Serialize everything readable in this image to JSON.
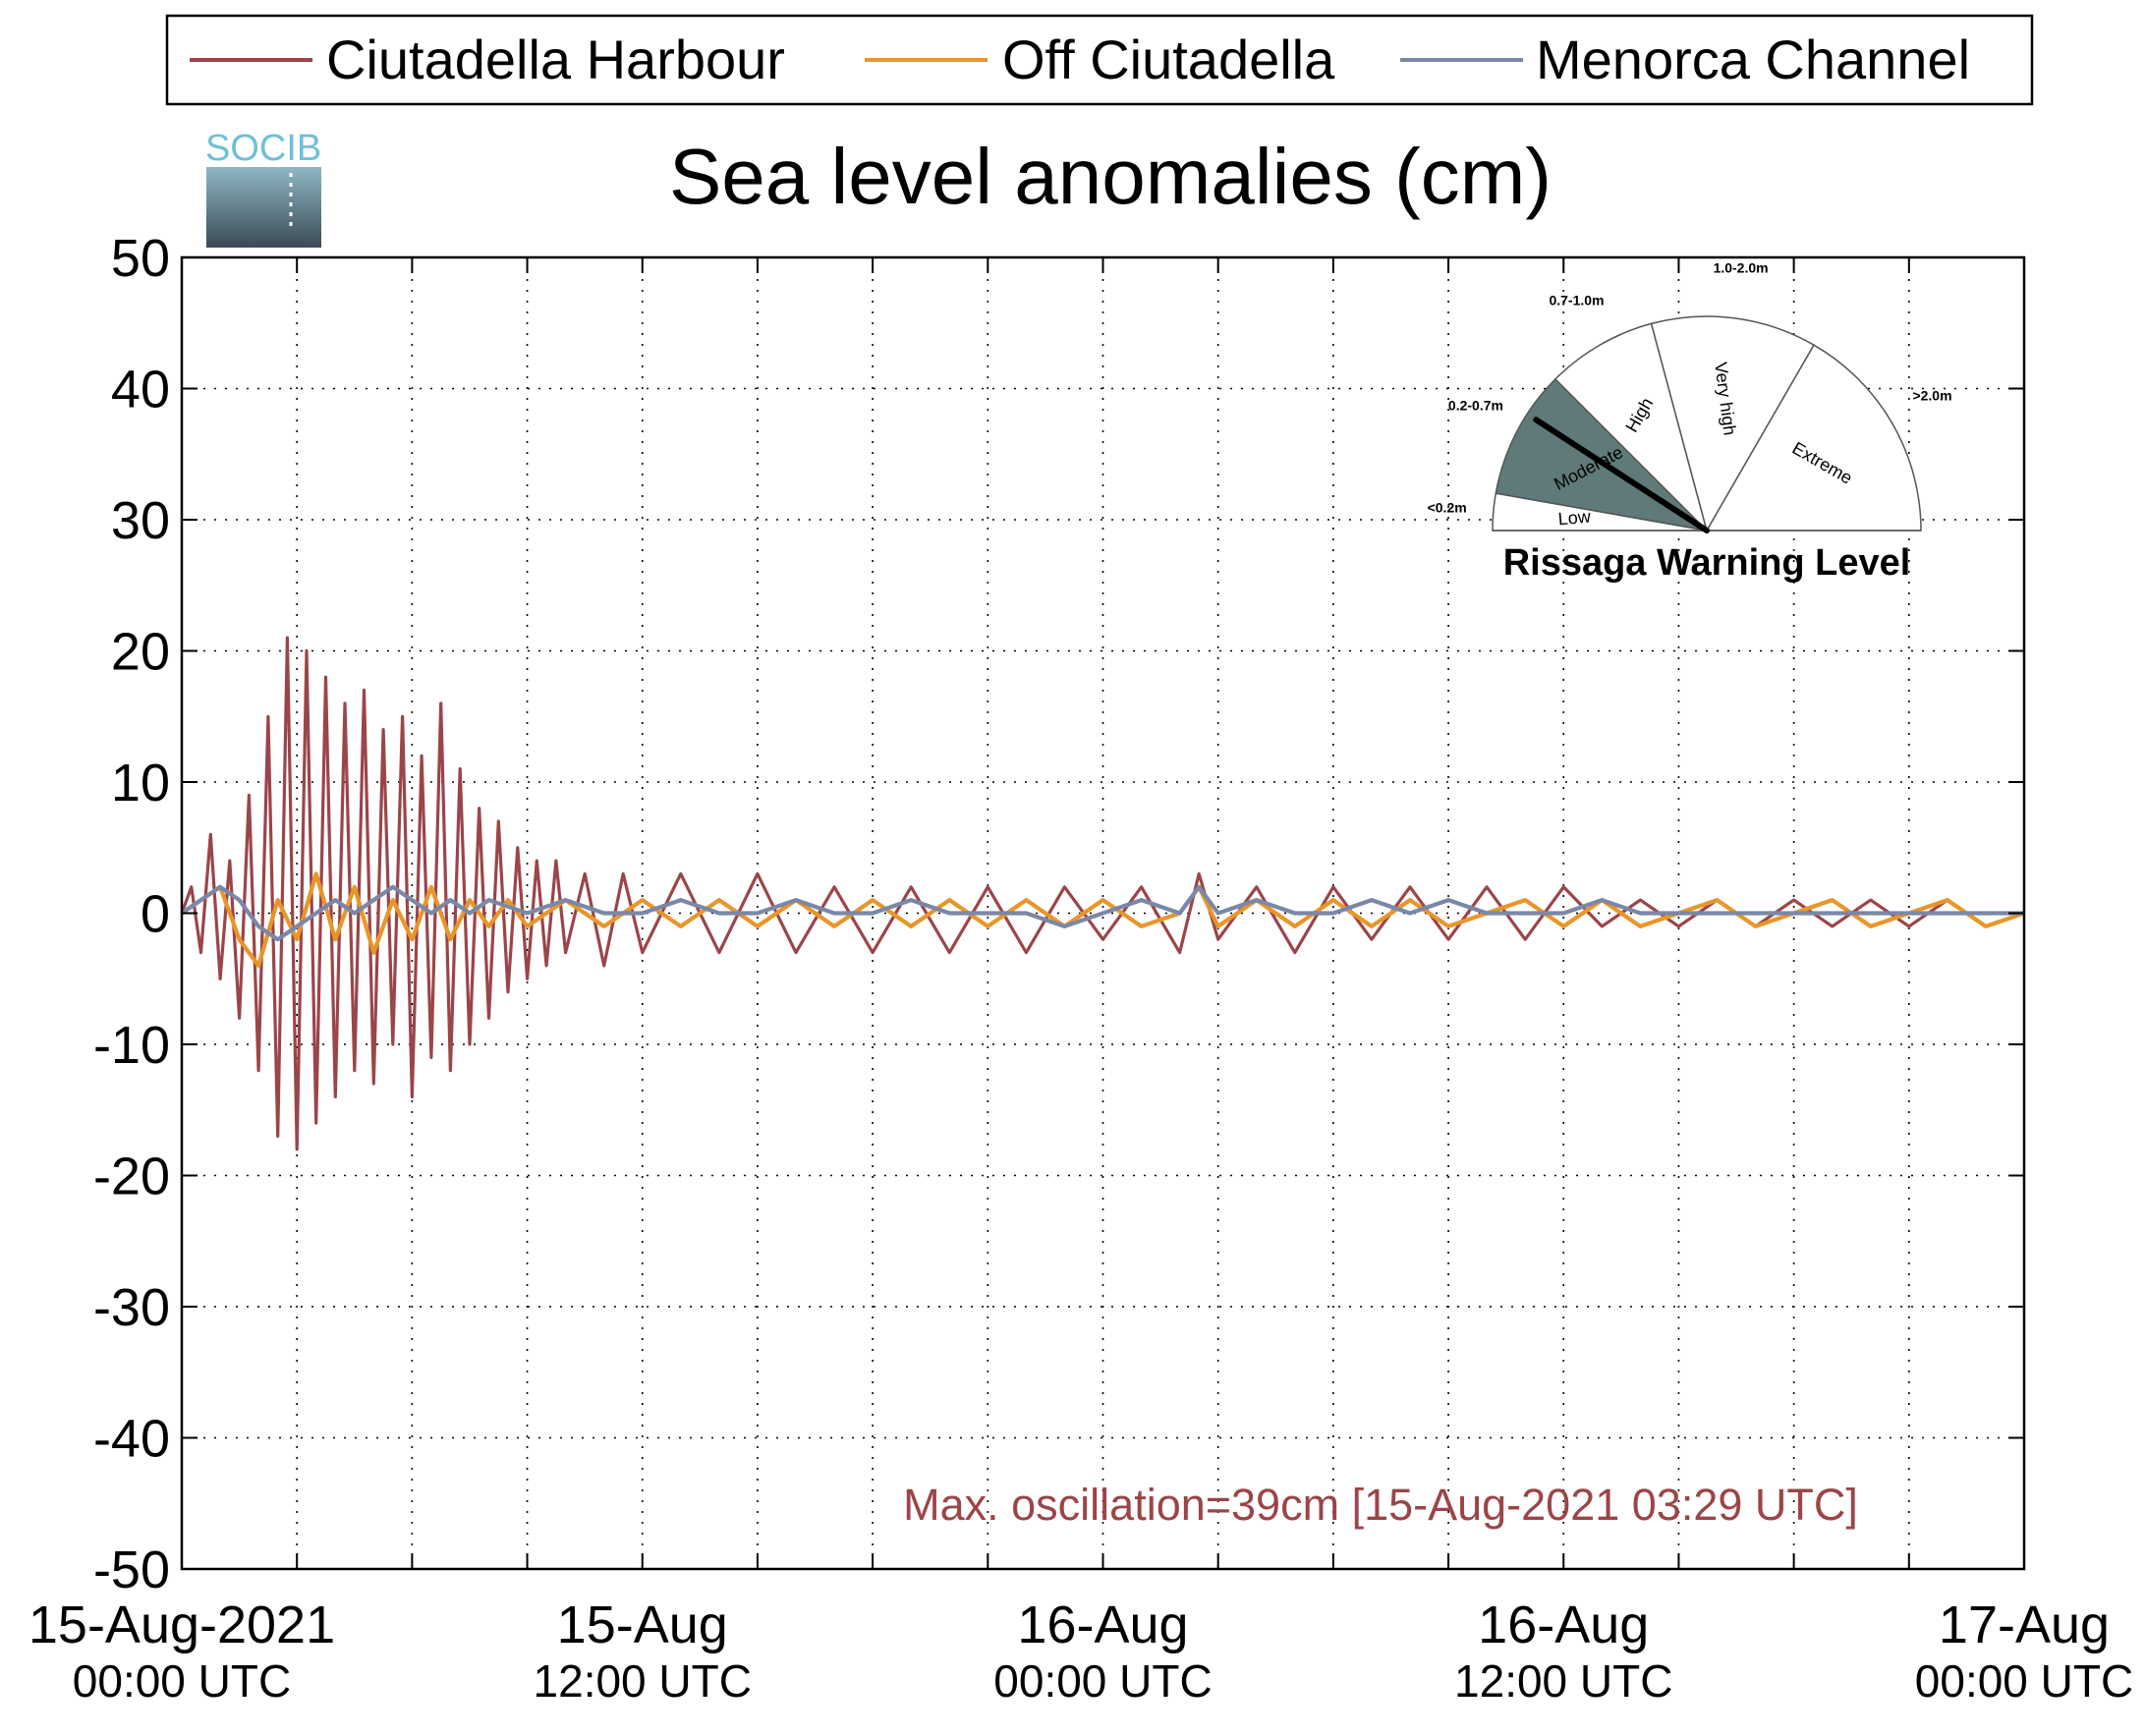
{
  "chart_data": {
    "type": "line",
    "title": "Sea level anomalies (cm)",
    "logo_text": "SOCIB",
    "xlabel": "",
    "ylabel": "",
    "x_range_hours": [
      0,
      48
    ],
    "ylim": [
      -50,
      50
    ],
    "grid": true,
    "legend_position": "top",
    "y_ticks": [
      50,
      40,
      30,
      20,
      10,
      0,
      -10,
      -20,
      -30,
      -40,
      -50
    ],
    "x_ticks": [
      {
        "hour": 0,
        "line1": "15-Aug-2021",
        "line2": "00:00 UTC"
      },
      {
        "hour": 12,
        "line1": "15-Aug",
        "line2": "12:00 UTC"
      },
      {
        "hour": 24,
        "line1": "16-Aug",
        "line2": "00:00 UTC"
      },
      {
        "hour": 36,
        "line1": "16-Aug",
        "line2": "12:00 UTC"
      },
      {
        "hour": 48,
        "line1": "17-Aug",
        "line2": "00:00 UTC"
      }
    ],
    "minor_tick_hours": [
      3,
      6,
      9,
      15,
      18,
      21,
      27,
      30,
      33,
      39,
      42,
      45
    ],
    "series": [
      {
        "name": "Ciutadella Harbour",
        "color": "#9b4548",
        "x_hours": [
          0,
          0.25,
          0.5,
          0.75,
          1,
          1.25,
          1.5,
          1.75,
          2,
          2.25,
          2.5,
          2.75,
          3,
          3.25,
          3.5,
          3.75,
          4,
          4.25,
          4.5,
          4.75,
          5,
          5.25,
          5.5,
          5.75,
          6,
          6.25,
          6.5,
          6.75,
          7,
          7.25,
          7.5,
          7.75,
          8,
          8.25,
          8.5,
          8.75,
          9,
          9.25,
          9.5,
          9.75,
          10,
          10.5,
          11,
          11.5,
          12,
          13,
          14,
          15,
          16,
          17,
          18,
          19,
          20,
          21,
          22,
          23,
          24,
          25,
          26,
          26.5,
          27,
          28,
          29,
          30,
          31,
          32,
          33,
          34,
          35,
          36,
          37,
          38,
          39,
          40,
          41,
          42,
          43,
          44,
          45,
          46,
          47,
          48
        ],
        "values": [
          0,
          2,
          -3,
          6,
          -5,
          4,
          -8,
          9,
          -12,
          15,
          -17,
          21,
          -18,
          20,
          -16,
          18,
          -14,
          16,
          -12,
          17,
          -13,
          14,
          -10,
          15,
          -14,
          12,
          -11,
          16,
          -12,
          11,
          -10,
          8,
          -8,
          7,
          -6,
          5,
          -5,
          4,
          -4,
          4,
          -3,
          3,
          -4,
          3,
          -3,
          3,
          -3,
          3,
          -3,
          2,
          -3,
          2,
          -3,
          2,
          -3,
          2,
          -2,
          2,
          -3,
          3,
          -2,
          2,
          -3,
          2,
          -2,
          2,
          -2,
          2,
          -2,
          2,
          -1,
          1,
          -1,
          1,
          -1,
          1,
          -1,
          1,
          -1,
          1,
          -1,
          0
        ]
      },
      {
        "name": "Off Ciutadella",
        "color": "#e8962a",
        "x_hours": [
          0,
          0.5,
          1,
          1.5,
          2,
          2.5,
          3,
          3.5,
          4,
          4.5,
          5,
          5.5,
          6,
          6.5,
          7,
          7.5,
          8,
          8.5,
          9,
          10,
          11,
          12,
          13,
          14,
          15,
          16,
          17,
          18,
          19,
          20,
          21,
          22,
          23,
          24,
          25,
          26,
          26.5,
          27,
          28,
          29,
          30,
          31,
          32,
          33,
          34,
          35,
          36,
          37,
          38,
          39,
          40,
          41,
          42,
          43,
          44,
          45,
          46,
          47,
          48
        ],
        "values": [
          0,
          1,
          2,
          -2,
          -4,
          1,
          -2,
          3,
          -2,
          2,
          -3,
          1,
          -2,
          2,
          -2,
          1,
          -1,
          1,
          -1,
          1,
          -1,
          1,
          -1,
          1,
          -1,
          1,
          -1,
          1,
          -1,
          1,
          -1,
          1,
          -1,
          1,
          -1,
          0,
          2,
          -1,
          1,
          -1,
          1,
          -1,
          1,
          -1,
          0,
          1,
          -1,
          1,
          -1,
          0,
          1,
          -1,
          0,
          1,
          -1,
          0,
          1,
          -1,
          0
        ]
      },
      {
        "name": "Menorca Channel",
        "color": "#7a88a8",
        "x_hours": [
          0,
          0.5,
          1,
          1.5,
          2,
          2.5,
          3,
          3.5,
          4,
          4.5,
          5,
          5.5,
          6,
          6.5,
          7,
          7.5,
          8,
          9,
          10,
          11,
          12,
          13,
          14,
          15,
          16,
          17,
          18,
          19,
          20,
          21,
          22,
          23,
          24,
          25,
          26,
          26.5,
          27,
          28,
          29,
          30,
          31,
          32,
          33,
          34,
          35,
          36,
          37,
          38,
          39,
          40,
          41,
          42,
          43,
          44,
          45,
          46,
          47,
          48
        ],
        "values": [
          0,
          1,
          2,
          1,
          -1,
          -2,
          -1,
          0,
          1,
          0,
          1,
          2,
          1,
          0,
          1,
          0,
          1,
          0,
          1,
          0,
          0,
          1,
          0,
          0,
          1,
          0,
          0,
          1,
          0,
          0,
          0,
          -1,
          0,
          1,
          0,
          2,
          0,
          1,
          0,
          0,
          1,
          0,
          1,
          0,
          0,
          0,
          1,
          0,
          0,
          0,
          0,
          0,
          0,
          0,
          0,
          0,
          0,
          0
        ]
      }
    ],
    "annotation": {
      "text": "Max. oscillation=39cm [15-Aug-2021 03:29 UTC]",
      "color": "#9b4548"
    }
  },
  "gauge": {
    "title": "Rissaga Warning Level",
    "active_level": "Moderate",
    "needle_fraction": 0.1,
    "sectors": [
      {
        "label": "Low",
        "range": "<0.2m",
        "range_color": "#6b8e5a",
        "start_deg": 0,
        "end_deg": 10
      },
      {
        "label": "Moderate",
        "range": "0.2-0.7m",
        "range_color": "#5a7a7a",
        "start_deg": 10,
        "end_deg": 45
      },
      {
        "label": "High",
        "range": "0.7-1.0m",
        "range_color": "#e6d800",
        "start_deg": 45,
        "end_deg": 75
      },
      {
        "label": "Very high",
        "range": "1.0-2.0m",
        "range_color": "#f07800",
        "start_deg": 75,
        "end_deg": 120
      },
      {
        "label": "Extreme",
        "range": ">2.0m",
        "range_color": "#e00000",
        "start_deg": 120,
        "end_deg": 180
      }
    ],
    "active_fill": "#5f7a78"
  }
}
